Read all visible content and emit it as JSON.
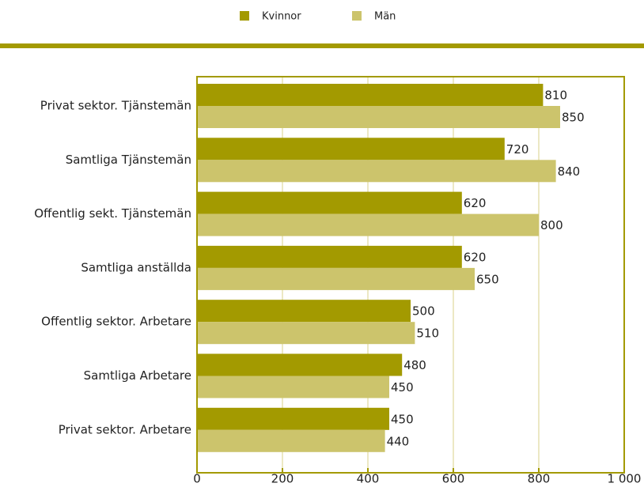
{
  "chart_data": {
    "type": "bar",
    "orientation": "horizontal",
    "categories": [
      "Privat sektor. Tjänstemän",
      "Samtliga Tjänstemän",
      "Offentlig sekt. Tjänstemän",
      "Samtliga anställda",
      "Offentlig sektor. Arbetare",
      "Samtliga Arbetare",
      "Privat sektor. Arbetare"
    ],
    "series": [
      {
        "name": "Kvinnor",
        "color": "#a39a00",
        "values": [
          810,
          720,
          620,
          620,
          500,
          480,
          450
        ]
      },
      {
        "name": "Män",
        "color": "#ccc46c",
        "values": [
          850,
          840,
          800,
          650,
          510,
          450,
          440
        ]
      }
    ],
    "xlim": [
      0,
      1000
    ],
    "xticks": [
      0,
      200,
      400,
      600,
      800,
      {
        "value": 1000,
        "label": "1 000"
      }
    ],
    "grid": true,
    "legend": "top"
  }
}
